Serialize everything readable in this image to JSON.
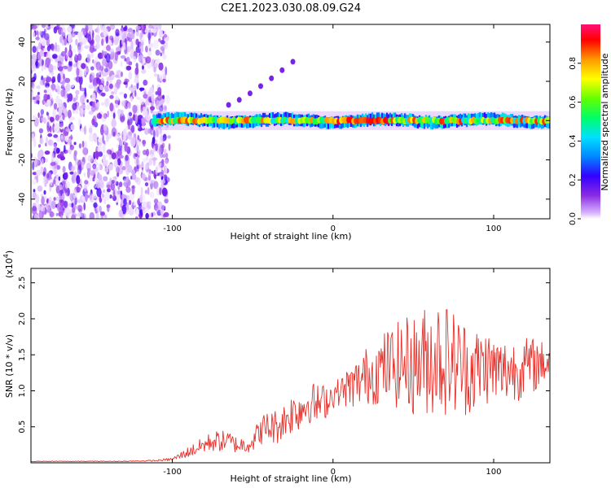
{
  "title": "C2E1.2023.030.08.09.G24",
  "chart_data": [
    {
      "type": "heatmap",
      "panel": "spectrogram",
      "xlabel": "Height of straight line (km)",
      "ylabel": "Frequency (Hz)",
      "xlim": [
        -188,
        135
      ],
      "ylim": [
        -50,
        49
      ],
      "xticks": [
        -100,
        0,
        100
      ],
      "xtick_labels": [
        "-100",
        "0",
        "100"
      ],
      "yticks": [
        -40,
        -20,
        0,
        20,
        40
      ],
      "ytick_labels": [
        "-40",
        "-20",
        "0",
        "20",
        "40"
      ],
      "colorbar": {
        "label": "Normalized spectral amplitude",
        "range": [
          0,
          1
        ],
        "ticks": [
          0.0,
          0.2,
          0.4,
          0.6,
          0.8
        ],
        "tick_labels": [
          "0.0",
          "0.2",
          "0.4",
          "0.6",
          "0.8"
        ],
        "colors": [
          "#ffffff",
          "#d8b4ff",
          "#8a2be2",
          "#3300ff",
          "#0088ff",
          "#00e0ff",
          "#00ff66",
          "#66ff00",
          "#ffff00",
          "#ff9900",
          "#ff0000",
          "#ff1177"
        ]
      },
      "features": {
        "noise_region_x": [
          -188,
          -103
        ],
        "signal_band": {
          "x": [
            -112,
            135
          ],
          "center_hz": 0,
          "half_width_hz": 3,
          "peak_amplitude": 0.9
        },
        "harmonic_trace": {
          "x": [
            -65,
            -25
          ],
          "y": [
            8,
            30
          ]
        }
      }
    },
    {
      "type": "line",
      "panel": "snr",
      "xlabel": "Height of straight line (km)",
      "ylabel": "SNR (10 * v/v)",
      "y_multiplier_label": "(x10",
      "y_multiplier_exp": "4",
      "y_multiplier_close": ")",
      "xlim": [
        -188,
        135
      ],
      "ylim": [
        0,
        2.7
      ],
      "xticks": [
        -100,
        0,
        100
      ],
      "xtick_labels": [
        "-100",
        "0",
        "100"
      ],
      "yticks": [
        0.5,
        1.0,
        1.5,
        2.0,
        2.5
      ],
      "ytick_labels": [
        "0.5",
        "1.0",
        "1.5",
        "2.0",
        "2.5"
      ],
      "color": "#e8302a",
      "series": [
        {
          "x": [
            -188,
            -160,
            -130,
            -110,
            -100,
            -95,
            -90,
            -85,
            -80,
            -75,
            -70,
            -65,
            -60,
            -55,
            -50,
            -45,
            -40,
            -35,
            -30,
            -25,
            -20,
            -15,
            -10,
            -5,
            0,
            5,
            10,
            15,
            20,
            25,
            30,
            35,
            40,
            45,
            50,
            55,
            60,
            65,
            70,
            75,
            80,
            85,
            90,
            95,
            100,
            105,
            110,
            115,
            120,
            125,
            130,
            135
          ],
          "y": [
            0.02,
            0.02,
            0.02,
            0.03,
            0.05,
            0.1,
            0.15,
            0.2,
            0.25,
            0.3,
            0.3,
            0.3,
            0.25,
            0.25,
            0.3,
            0.45,
            0.5,
            0.5,
            0.6,
            0.7,
            0.75,
            0.85,
            0.8,
            0.85,
            0.95,
            1.0,
            1.05,
            1.1,
            1.2,
            1.25,
            1.3,
            1.35,
            1.35,
            1.4,
            1.35,
            1.4,
            1.45,
            1.5,
            1.45,
            1.4,
            1.35,
            1.3,
            1.3,
            1.35,
            1.3,
            1.25,
            1.3,
            1.3,
            1.35,
            1.35,
            1.4,
            1.4
          ],
          "fluctuation_envelope": [
            0.005,
            0.005,
            0.005,
            0.01,
            0.02,
            0.05,
            0.08,
            0.1,
            0.12,
            0.15,
            0.15,
            0.15,
            0.12,
            0.12,
            0.15,
            0.2,
            0.25,
            0.25,
            0.25,
            0.3,
            0.3,
            0.3,
            0.3,
            0.25,
            0.2,
            0.2,
            0.3,
            0.35,
            0.4,
            0.45,
            0.5,
            0.55,
            0.6,
            0.65,
            0.7,
            0.75,
            0.8,
            0.85,
            0.8,
            0.75,
            0.7,
            0.65,
            0.6,
            0.55,
            0.5,
            0.5,
            0.45,
            0.45,
            0.4,
            0.4,
            0.3,
            0.3
          ]
        }
      ]
    }
  ]
}
